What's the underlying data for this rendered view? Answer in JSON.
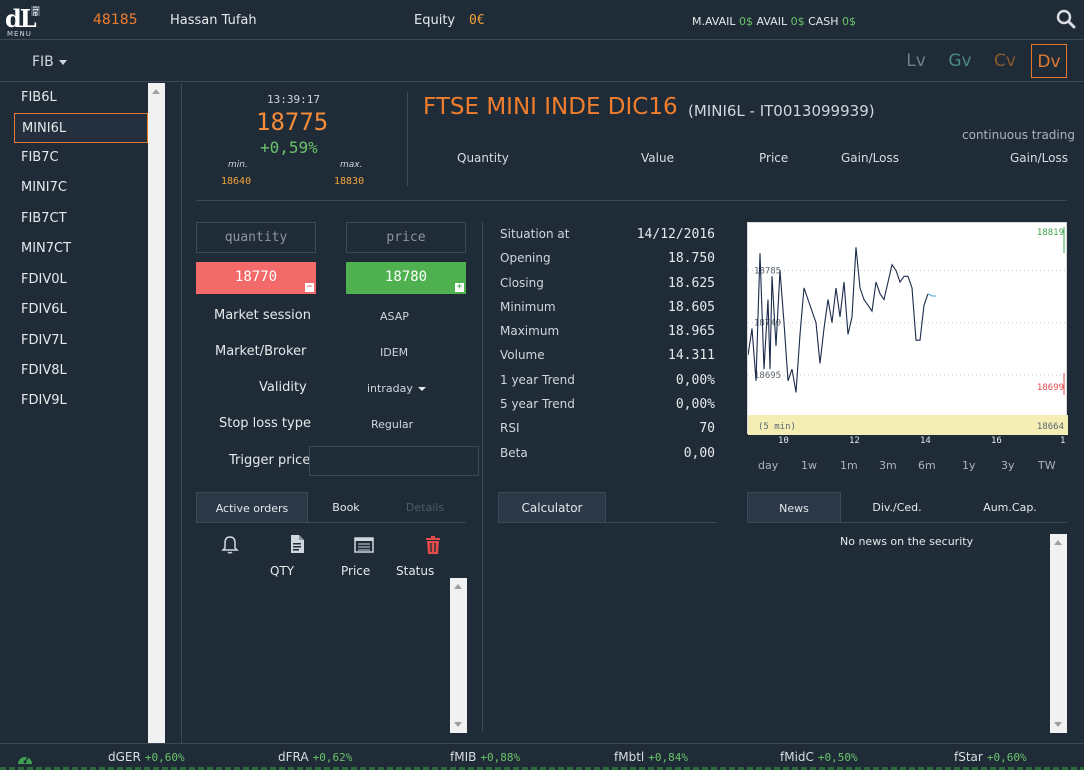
{
  "topbar": {
    "account_id": "48185",
    "user_name": "Hassan Tufah",
    "equity_label": "Equity",
    "equity_value": "0€",
    "m_avail_label": "M.AVAIL",
    "m_avail_value": "0$",
    "avail_label": "AVAIL",
    "avail_value": "0$",
    "cash_label": "CASH",
    "cash_value": "0$",
    "logo_text": "dL",
    "logo_small": "ite",
    "menu_label": "MENU"
  },
  "filter": {
    "selected": "FIB"
  },
  "views": [
    {
      "label": "Lv",
      "color": "#6f7f8e"
    },
    {
      "label": "Gv",
      "color": "#4a8a88"
    },
    {
      "label": "Cv",
      "color": "#8a5a2e"
    },
    {
      "label": "Dv",
      "color": "#e07a30",
      "active": true
    }
  ],
  "sidebar": {
    "items": [
      "FIB6L",
      "MINI6L",
      "FIB7C",
      "MINI7C",
      "FIB7CT",
      "MIN7CT",
      "FDIV0L",
      "FDIV6L",
      "FDIV7L",
      "FDIV8L",
      "FDIV9L"
    ],
    "selected_index": 1
  },
  "quote": {
    "time": "13:39:17",
    "last": "18775",
    "change": "+0,59%",
    "min_label": "min.",
    "max_label": "max.",
    "min": "18640",
    "max": "18830",
    "title": "FTSE MINI INDE DIC16",
    "subtitle": "(MINI6L - IT0013099939)",
    "state": "continuous trading",
    "headers": [
      "Quantity",
      "Value",
      "Price",
      "Gain/Loss",
      "Gain/Loss"
    ]
  },
  "order": {
    "quantity_placeholder": "quantity",
    "price_placeholder": "price",
    "sell_price": "18770",
    "buy_price": "18780",
    "fields": [
      {
        "label": "Market session",
        "value": "ASAP"
      },
      {
        "label": "Market/Broker",
        "value": "IDEM"
      },
      {
        "label": "Validity",
        "value": "intraday"
      },
      {
        "label": "Stop loss type",
        "value": "Regular"
      },
      {
        "label": "Trigger price",
        "value": ""
      }
    ]
  },
  "order_tabs": [
    "Active orders",
    "Book",
    "Details"
  ],
  "order_columns": [
    "QTY",
    "Price",
    "Status"
  ],
  "stats": [
    {
      "label": "Situation at",
      "value": "14/12/2016"
    },
    {
      "label": "Opening",
      "value": "18.750"
    },
    {
      "label": "Closing",
      "value": "18.625"
    },
    {
      "label": "Minimum",
      "value": "18.605"
    },
    {
      "label": "Maximum",
      "value": "18.965"
    },
    {
      "label": "Volume",
      "value": "14.311"
    },
    {
      "label": "1 year Trend",
      "value": "0,00%"
    },
    {
      "label": "5 year Trend",
      "value": "0,00%"
    },
    {
      "label": "RSI",
      "value": "70"
    },
    {
      "label": "Beta",
      "value": "0,00"
    }
  ],
  "calculator_tab": "Calculator",
  "chart_data": {
    "type": "line",
    "interval_label": "(5 min)",
    "x_ticks": [
      "10",
      "12",
      "14",
      "16",
      "1"
    ],
    "y_ticks": [
      "18785",
      "18740",
      "18695"
    ],
    "high_label": "18819",
    "low_label": "18699",
    "bottom_label": "18664",
    "ylim": [
      18664,
      18819
    ],
    "xlim": [
      9,
      17
    ],
    "x": [
      9.0,
      9.1,
      9.2,
      9.3,
      9.4,
      9.5,
      9.55,
      9.6,
      9.7,
      9.8,
      9.9,
      10.0,
      10.1,
      10.2,
      10.3,
      10.4,
      10.5,
      10.6,
      10.7,
      10.8,
      10.9,
      11.0,
      11.1,
      11.2,
      11.3,
      11.4,
      11.5,
      11.6,
      11.7,
      11.8,
      11.9,
      12.0,
      12.1,
      12.2,
      12.3,
      12.4,
      12.5,
      12.6,
      12.7,
      12.8,
      12.9,
      13.0,
      13.1,
      13.2,
      13.3,
      13.4,
      13.5,
      13.6,
      13.7
    ],
    "y": [
      18712,
      18735,
      18690,
      18800,
      18700,
      18760,
      18700,
      18780,
      18720,
      18785,
      18740,
      18690,
      18700,
      18680,
      18730,
      18770,
      18760,
      18750,
      18740,
      18705,
      18735,
      18760,
      18740,
      18770,
      18745,
      18775,
      18730,
      18745,
      18805,
      18770,
      18760,
      18755,
      18750,
      18775,
      18765,
      18760,
      18775,
      18790,
      18785,
      18775,
      18780,
      18780,
      18770,
      18725,
      18725,
      18755,
      18765,
      18763,
      18763
    ]
  },
  "ranges": [
    "day",
    "1w",
    "1m",
    "3m",
    "6m",
    "1y",
    "3y",
    "TW"
  ],
  "news_tabs": [
    "News",
    "Div./Ced.",
    "Aum.Cap."
  ],
  "news_message": "No news on the security",
  "footer": [
    {
      "name": "dGER",
      "value": "+0,60%"
    },
    {
      "name": "dFRA",
      "value": "+0,62%"
    },
    {
      "name": "fMIB",
      "value": "+0,88%"
    },
    {
      "name": "fMbtl",
      "value": "+0,84%"
    },
    {
      "name": "fMidC",
      "value": "+0,50%"
    },
    {
      "name": "fStar",
      "value": "+0,60%"
    }
  ]
}
